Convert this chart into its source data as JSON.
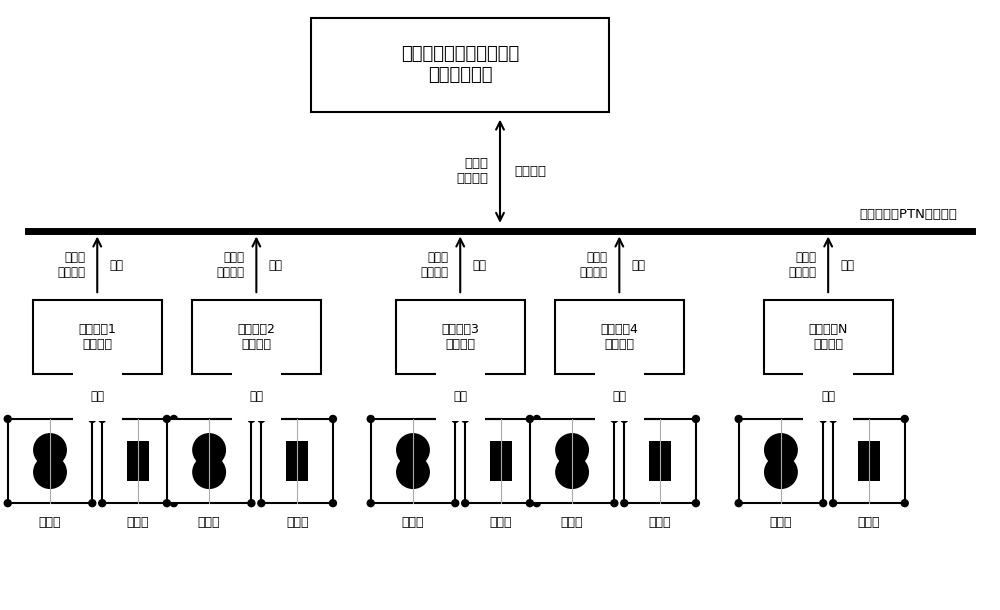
{
  "title": "基于相位差原理的配电网\n广域差动保护",
  "network_label": "配电网广域PTN光纤环网",
  "sample_label": "采样值\n开入开出",
  "giga_label": "千兆光口",
  "terminal_labels": [
    "馈线开关1\n智能终端",
    "馈线开关2\n智能终端",
    "馈线开关3\n智能终端",
    "馈线开关4\n智能终端",
    "馈线开关N\n智能终端"
  ],
  "cable_label": "电缆",
  "optical_label": "光缆",
  "transformer_label": "互感器",
  "breaker_label": "断路器",
  "bg_color": "#ffffff",
  "line_color": "#000000",
  "font_size": 9.5,
  "title_font_size": 13,
  "ptn_label_fontsize": 9.5
}
